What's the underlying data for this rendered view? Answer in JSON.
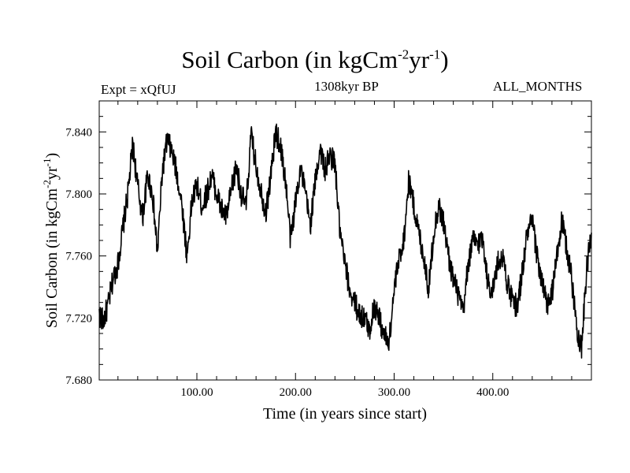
{
  "header": {
    "title_main": "Soil Carbon (in kgCm",
    "title_sup1": "-2",
    "title_mid": "yr",
    "title_sup2": "-1",
    "title_end": ")",
    "expt": "Expt = xQfUJ",
    "period": "1308kyr BP",
    "months": "ALL_MONTHS"
  },
  "chart_data": {
    "type": "line",
    "title": "Soil Carbon (in kgCm-2yr-1)",
    "xlabel": "Time (in years since start)",
    "ylabel": "Soil Carbon (in kgCm-2yr-1)",
    "xlim": [
      1,
      500
    ],
    "ylim": [
      7.68,
      7.86
    ],
    "x_ticks": [
      100,
      200,
      300,
      400
    ],
    "x_tick_labels": [
      "100.00",
      "200.00",
      "300.00",
      "400.00"
    ],
    "y_ticks": [
      7.68,
      7.72,
      7.76,
      7.8,
      7.84
    ],
    "y_tick_labels": [
      "7.680",
      "7.720",
      "7.760",
      "7.800",
      "7.840"
    ],
    "grid": false,
    "series": [
      {
        "color": "#000000",
        "x": [
          1,
          5,
          10,
          15,
          20,
          25,
          30,
          35,
          40,
          45,
          50,
          55,
          60,
          65,
          70,
          75,
          80,
          85,
          90,
          95,
          100,
          105,
          110,
          115,
          120,
          125,
          130,
          135,
          140,
          145,
          150,
          155,
          160,
          165,
          170,
          175,
          180,
          185,
          190,
          195,
          200,
          205,
          210,
          215,
          220,
          225,
          230,
          235,
          240,
          245,
          250,
          255,
          260,
          265,
          270,
          275,
          280,
          285,
          290,
          295,
          300,
          305,
          310,
          315,
          320,
          325,
          330,
          335,
          340,
          345,
          350,
          355,
          360,
          365,
          370,
          375,
          380,
          385,
          390,
          395,
          400,
          405,
          410,
          415,
          420,
          425,
          430,
          435,
          440,
          445,
          450,
          455,
          460,
          465,
          470,
          475,
          480,
          485,
          490,
          495,
          500
        ],
        "values": [
          7.722,
          7.718,
          7.728,
          7.745,
          7.755,
          7.778,
          7.8,
          7.832,
          7.805,
          7.785,
          7.812,
          7.8,
          7.762,
          7.815,
          7.835,
          7.826,
          7.812,
          7.792,
          7.76,
          7.795,
          7.806,
          7.792,
          7.8,
          7.812,
          7.8,
          7.79,
          7.785,
          7.802,
          7.818,
          7.8,
          7.792,
          7.838,
          7.818,
          7.802,
          7.788,
          7.812,
          7.84,
          7.83,
          7.808,
          7.77,
          7.795,
          7.818,
          7.8,
          7.78,
          7.808,
          7.83,
          7.815,
          7.825,
          7.82,
          7.775,
          7.755,
          7.738,
          7.73,
          7.722,
          7.72,
          7.712,
          7.728,
          7.72,
          7.708,
          7.705,
          7.738,
          7.758,
          7.772,
          7.81,
          7.792,
          7.775,
          7.76,
          7.738,
          7.775,
          7.792,
          7.782,
          7.76,
          7.745,
          7.735,
          7.722,
          7.755,
          7.77,
          7.768,
          7.772,
          7.742,
          7.738,
          7.755,
          7.76,
          7.742,
          7.73,
          7.728,
          7.75,
          7.775,
          7.782,
          7.76,
          7.742,
          7.728,
          7.735,
          7.76,
          7.782,
          7.765,
          7.745,
          7.715,
          7.7,
          7.75,
          7.775
        ]
      }
    ]
  }
}
